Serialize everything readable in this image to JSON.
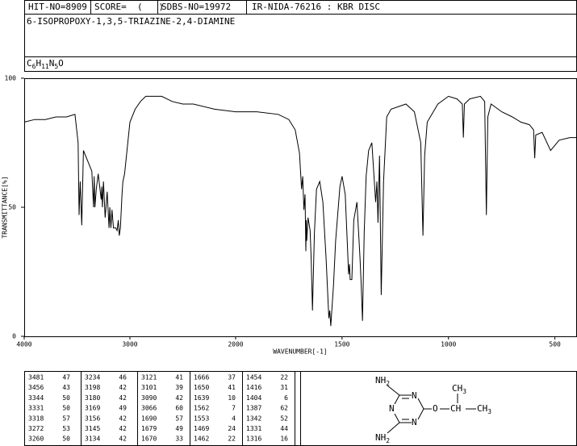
{
  "header": {
    "hit_no": "HIT-NO=8909",
    "score": "SCORE=  (   )",
    "sdbs_no": "SDBS-NO=19972",
    "source": "IR-NIDA-76216 : KBR DISC",
    "compound": "6-ISOPROPOXY-1,3,5-TRIAZINE-2,4-DIAMINE",
    "formula": "C6H11N5O"
  },
  "chart_data": {
    "type": "line",
    "xlabel": "WAVENUMBER[-1]",
    "ylabel": "TRANSMITTANCE[%]",
    "color": "#000000",
    "xlim": [
      4000,
      400
    ],
    "xscale_break": 2000,
    "ylim": [
      0,
      100
    ],
    "xticks": [
      4000,
      3000,
      2000,
      1500,
      1000,
      500
    ],
    "yticks": [
      0,
      50,
      100
    ],
    "x": [
      4000,
      3900,
      3800,
      3700,
      3600,
      3520,
      3490,
      3481,
      3470,
      3456,
      3440,
      3400,
      3360,
      3344,
      3338,
      3331,
      3318,
      3300,
      3272,
      3266,
      3260,
      3250,
      3234,
      3215,
      3198,
      3190,
      3180,
      3169,
      3156,
      3145,
      3134,
      3121,
      3110,
      3101,
      3090,
      3075,
      3066,
      3050,
      3000,
      2950,
      2900,
      2850,
      2800,
      2700,
      2600,
      2500,
      2400,
      2200,
      2000,
      1900,
      1800,
      1750,
      1720,
      1700,
      1690,
      1685,
      1679,
      1674,
      1670,
      1668,
      1666,
      1660,
      1650,
      1645,
      1639,
      1630,
      1620,
      1605,
      1590,
      1575,
      1562,
      1558,
      1553,
      1540,
      1530,
      1510,
      1500,
      1485,
      1469,
      1465,
      1462,
      1454,
      1445,
      1430,
      1416,
      1410,
      1404,
      1396,
      1387,
      1375,
      1360,
      1342,
      1336,
      1331,
      1324,
      1316,
      1305,
      1290,
      1270,
      1200,
      1160,
      1130,
      1120,
      1112,
      1100,
      1050,
      1000,
      960,
      935,
      930,
      925,
      900,
      850,
      830,
      822,
      815,
      800,
      750,
      700,
      660,
      620,
      600,
      595,
      590,
      560,
      520,
      480,
      430,
      400
    ],
    "values": [
      83,
      84,
      84,
      85,
      85,
      86,
      75,
      47,
      60,
      43,
      72,
      68,
      64,
      50,
      62,
      50,
      57,
      63,
      53,
      58,
      50,
      60,
      46,
      56,
      42,
      50,
      42,
      49,
      42,
      42,
      42,
      41,
      45,
      39,
      42,
      55,
      60,
      63,
      83,
      88,
      91,
      93,
      93,
      93,
      91,
      90,
      90,
      88,
      87,
      87,
      86,
      84,
      80,
      71,
      57,
      62,
      49,
      55,
      33,
      45,
      37,
      46,
      41,
      30,
      10,
      40,
      57,
      60,
      52,
      30,
      7,
      10,
      4,
      20,
      37,
      58,
      62,
      55,
      24,
      28,
      22,
      22,
      45,
      52,
      31,
      20,
      6,
      40,
      62,
      72,
      75,
      52,
      60,
      44,
      70,
      16,
      60,
      85,
      88,
      90,
      87,
      75,
      39,
      70,
      83,
      90,
      93,
      92,
      90,
      77,
      90,
      92,
      93,
      91,
      47,
      85,
      90,
      87,
      85,
      83,
      82,
      80,
      69,
      78,
      79,
      72,
      76,
      77,
      77
    ]
  },
  "peak_table": {
    "columns": [
      [
        [
          3481,
          47
        ],
        [
          3456,
          43
        ],
        [
          3344,
          50
        ],
        [
          3331,
          50
        ],
        [
          3318,
          57
        ],
        [
          3272,
          53
        ],
        [
          3260,
          50
        ]
      ],
      [
        [
          3234,
          46
        ],
        [
          3198,
          42
        ],
        [
          3180,
          42
        ],
        [
          3169,
          49
        ],
        [
          3156,
          42
        ],
        [
          3145,
          42
        ],
        [
          3134,
          42
        ]
      ],
      [
        [
          3121,
          41
        ],
        [
          3101,
          39
        ],
        [
          3090,
          42
        ],
        [
          3066,
          60
        ],
        [
          1690,
          57
        ],
        [
          1679,
          49
        ],
        [
          1670,
          33
        ]
      ],
      [
        [
          1666,
          37
        ],
        [
          1650,
          41
        ],
        [
          1639,
          10
        ],
        [
          1562,
          7
        ],
        [
          1553,
          4
        ],
        [
          1469,
          24
        ],
        [
          1462,
          22
        ]
      ],
      [
        [
          1454,
          22
        ],
        [
          1416,
          31
        ],
        [
          1404,
          6
        ],
        [
          1387,
          62
        ],
        [
          1342,
          52
        ],
        [
          1331,
          44
        ],
        [
          1316,
          16
        ]
      ]
    ]
  },
  "structure": {
    "amine_top": "NH2",
    "amine_bottom": "NH2",
    "ring_n_top": "N",
    "ring_n_left": "N",
    "ring_n_bottom": "N",
    "oxygen": "O",
    "methine": "CH",
    "methyl_top": "CH3",
    "methyl_right": "CH3"
  }
}
